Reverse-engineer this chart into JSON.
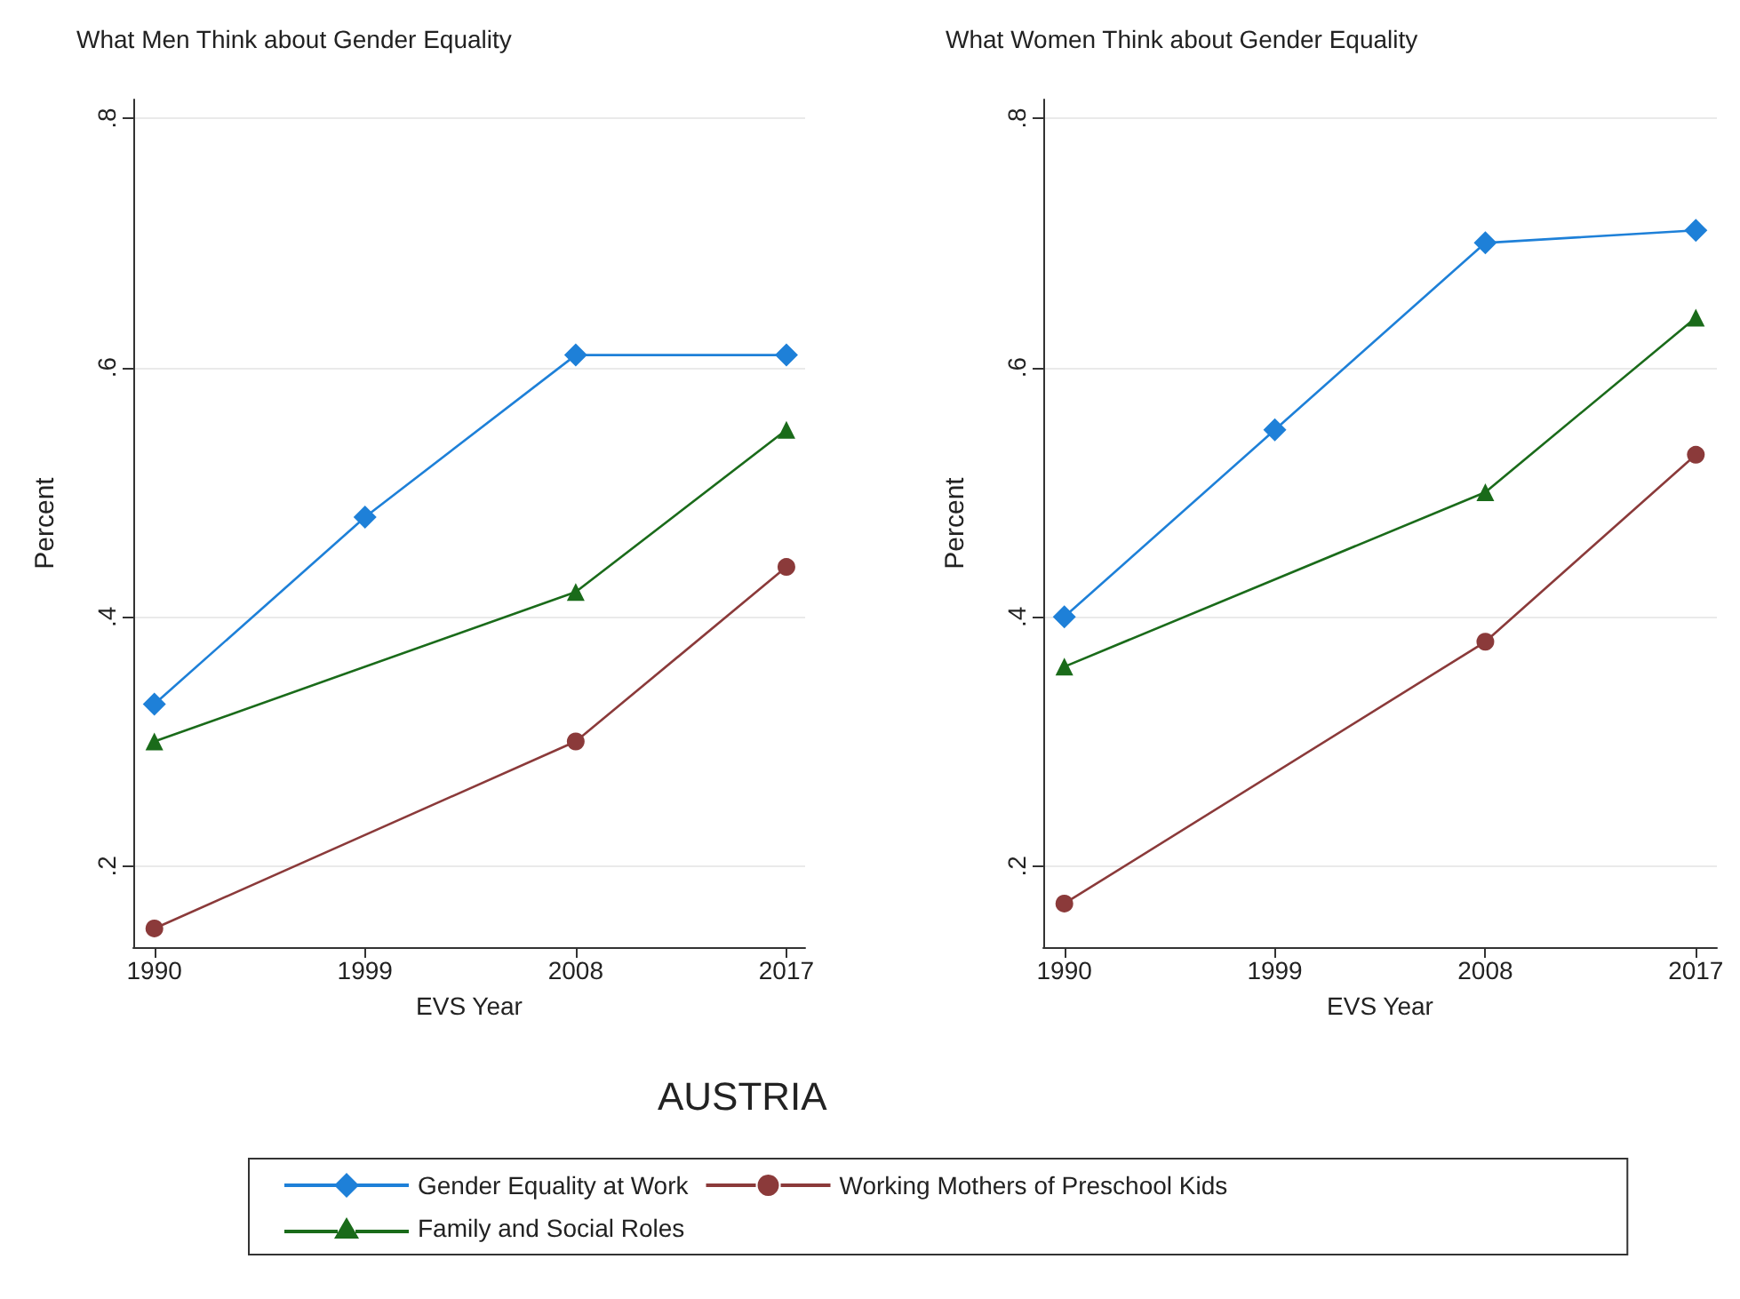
{
  "chart_data": [
    {
      "type": "line",
      "title": "What Men Think about Gender Equality",
      "xlabel": "EVS Year",
      "ylabel": "Percent",
      "xlim": [
        1989.1,
        2017.8
      ],
      "xticks": [
        1990,
        1999,
        2008,
        2017
      ],
      "ylim": [
        0.135,
        0.815
      ],
      "yticks": [
        {
          "value": 0.2,
          "label": ".2"
        },
        {
          "value": 0.4,
          "label": ".4"
        },
        {
          "value": 0.6,
          "label": ".6"
        },
        {
          "value": 0.8,
          "label": ".8"
        }
      ],
      "grid": "y",
      "legend": "bottom",
      "annotations": [
        "AUSTRIA"
      ],
      "series": [
        {
          "name": "Gender Equality at Work",
          "color": "#1e80d8",
          "marker": "diamond",
          "x": [
            1990,
            1999,
            2008,
            2017
          ],
          "values": [
            0.33,
            0.48,
            0.61,
            0.61
          ]
        },
        {
          "name": "Working Mothers of Preschool Kids",
          "color": "#8b3a3a",
          "marker": "circle",
          "x": [
            1990,
            2008,
            2017
          ],
          "values": [
            0.15,
            0.3,
            0.44
          ]
        },
        {
          "name": "Family and Social Roles",
          "color": "#1a6b1a",
          "marker": "triangle",
          "x": [
            1990,
            2008,
            2017
          ],
          "values": [
            0.3,
            0.42,
            0.55
          ]
        }
      ]
    },
    {
      "type": "line",
      "title": "What Women Think about Gender Equality",
      "xlabel": "EVS Year",
      "ylabel": "Percent",
      "xlim": [
        1989.1,
        2017.9
      ],
      "xticks": [
        1990,
        1999,
        2008,
        2017
      ],
      "ylim": [
        0.135,
        0.815
      ],
      "yticks": [
        {
          "value": 0.2,
          "label": ".2"
        },
        {
          "value": 0.4,
          "label": ".4"
        },
        {
          "value": 0.6,
          "label": ".6"
        },
        {
          "value": 0.8,
          "label": ".8"
        }
      ],
      "grid": "y",
      "series": [
        {
          "name": "Gender Equality at Work",
          "color": "#1e80d8",
          "marker": "diamond",
          "x": [
            1990,
            1999,
            2008,
            2017
          ],
          "values": [
            0.4,
            0.55,
            0.7,
            0.71
          ]
        },
        {
          "name": "Working Mothers of Preschool Kids",
          "color": "#8b3a3a",
          "marker": "circle",
          "x": [
            1990,
            2008,
            2017
          ],
          "values": [
            0.17,
            0.38,
            0.53
          ]
        },
        {
          "name": "Family and Social Roles",
          "color": "#1a6b1a",
          "marker": "triangle",
          "x": [
            1990,
            2008,
            2017
          ],
          "values": [
            0.36,
            0.5,
            0.64
          ]
        }
      ]
    }
  ]
}
